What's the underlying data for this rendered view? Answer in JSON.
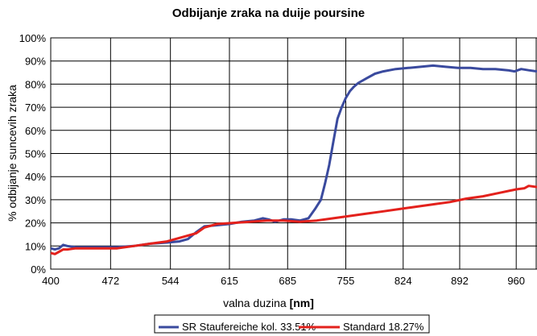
{
  "chart_data": {
    "type": "line",
    "title": "Odbijanje zraka na duije poursine",
    "xlabel": "valna duzina",
    "xlabel_unit": "[nm]",
    "ylabel": "% odbijanje suncevih zraka",
    "xlim": [
      400,
      985
    ],
    "ylim": [
      0,
      100
    ],
    "x_ticks": [
      400,
      472,
      544,
      615,
      685,
      755,
      824,
      892,
      960
    ],
    "x_tick_labels": [
      "400",
      "472",
      "544",
      "615",
      "685",
      "755",
      "824",
      "892",
      "960"
    ],
    "y_ticks": [
      0,
      10,
      20,
      30,
      40,
      50,
      60,
      70,
      80,
      90,
      100
    ],
    "y_tick_labels": [
      "0%",
      "10%",
      "20%",
      "30%",
      "40%",
      "50%",
      "60%",
      "70%",
      "80%",
      "90%",
      "100%"
    ],
    "grid": true,
    "legend_position": "bottom",
    "series": [
      {
        "name": "SR Staufereiche kol. 33.51%",
        "color": "#3a4a9e",
        "x": [
          400,
          405,
          410,
          415,
          420,
          430,
          440,
          460,
          480,
          500,
          520,
          540,
          555,
          565,
          575,
          585,
          600,
          615,
          630,
          645,
          655,
          662,
          670,
          680,
          690,
          700,
          710,
          718,
          725,
          730,
          735,
          740,
          745,
          750,
          755,
          760,
          765,
          770,
          780,
          790,
          800,
          815,
          830,
          845,
          860,
          875,
          890,
          905,
          920,
          935,
          950,
          958,
          966,
          975,
          985
        ],
        "y": [
          9,
          8.5,
          9,
          10.5,
          10,
          9.5,
          9.5,
          9.5,
          9.5,
          10,
          11,
          11.5,
          12,
          13,
          16,
          18.5,
          19,
          19.5,
          20.5,
          21,
          22,
          21.5,
          20.5,
          21.5,
          21.5,
          21,
          22,
          26,
          30,
          37,
          45,
          55,
          65,
          70,
          74,
          77,
          79,
          80.5,
          82.5,
          84.5,
          85.5,
          86.5,
          87,
          87.5,
          88,
          87.5,
          87,
          87,
          86.5,
          86.5,
          86,
          85.5,
          86.5,
          86,
          85.5
        ]
      },
      {
        "name": "Standard 18.27%",
        "color": "#e3211c",
        "x": [
          400,
          405,
          410,
          415,
          420,
          430,
          440,
          460,
          480,
          500,
          520,
          540,
          560,
          575,
          585,
          600,
          620,
          640,
          660,
          680,
          700,
          720,
          740,
          760,
          780,
          800,
          820,
          840,
          860,
          880,
          900,
          920,
          940,
          960,
          970,
          975,
          985
        ],
        "y": [
          7,
          6.5,
          7.5,
          8.5,
          8.5,
          9,
          9,
          9,
          9,
          10,
          11,
          12,
          14,
          15.5,
          18,
          19.5,
          20,
          20.5,
          21,
          21,
          20.5,
          21,
          22,
          23,
          24,
          25,
          26,
          27,
          28,
          29,
          30.5,
          31.5,
          33,
          34.5,
          35,
          36,
          35.5
        ]
      }
    ]
  }
}
